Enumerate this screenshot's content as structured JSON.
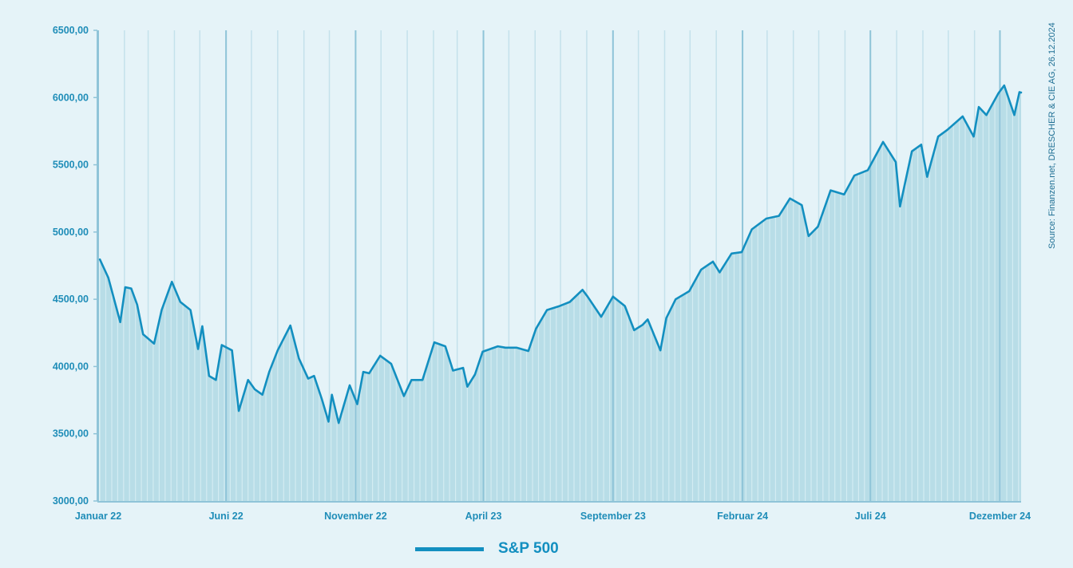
{
  "colors": {
    "line": "#138fc0",
    "fill": "#b8dde7",
    "grid_major": "#8fc4d8",
    "grid_minor": "#c4e1eb",
    "text": "#1f8db8",
    "background": "#e5f3f8"
  },
  "source": "Source: Finanzen.net, DRESCHER & CIE AG, 26.12.2024",
  "chart_data": {
    "type": "line",
    "title": "",
    "xlabel": "",
    "ylabel": "",
    "ylim": [
      3000,
      6500
    ],
    "yticks": [
      3000,
      3500,
      4000,
      4500,
      5000,
      5500,
      6000,
      6500
    ],
    "ytick_labels": [
      "3000,00",
      "3500,00",
      "4000,00",
      "4500,00",
      "5000,00",
      "5500,00",
      "6000,00",
      "6500,00"
    ],
    "xlim": [
      "2022-01-01",
      "2024-12-26"
    ],
    "xticks": [
      {
        "date": "2022-01-01",
        "label": "Januar 22"
      },
      {
        "date": "2022-06-01",
        "label": "Juni 22"
      },
      {
        "date": "2022-11-01",
        "label": "November 22"
      },
      {
        "date": "2023-04-01",
        "label": "April 23"
      },
      {
        "date": "2023-09-01",
        "label": "September 23"
      },
      {
        "date": "2024-02-01",
        "label": "Februar 24"
      },
      {
        "date": "2024-07-01",
        "label": "Juli 24"
      },
      {
        "date": "2024-12-01",
        "label": "Dezember 24"
      }
    ],
    "grid": true,
    "legend": "bottom-left",
    "series": [
      {
        "name": "S&P 500",
        "points": [
          [
            "2022-01-03",
            4796
          ],
          [
            "2022-01-13",
            4660
          ],
          [
            "2022-01-27",
            4330
          ],
          [
            "2022-02-02",
            4590
          ],
          [
            "2022-02-09",
            4580
          ],
          [
            "2022-02-16",
            4460
          ],
          [
            "2022-02-23",
            4240
          ],
          [
            "2022-03-08",
            4170
          ],
          [
            "2022-03-17",
            4420
          ],
          [
            "2022-03-29",
            4630
          ],
          [
            "2022-04-08",
            4480
          ],
          [
            "2022-04-20",
            4420
          ],
          [
            "2022-04-29",
            4130
          ],
          [
            "2022-05-04",
            4300
          ],
          [
            "2022-05-12",
            3930
          ],
          [
            "2022-05-20",
            3900
          ],
          [
            "2022-05-27",
            4160
          ],
          [
            "2022-06-08",
            4120
          ],
          [
            "2022-06-16",
            3670
          ],
          [
            "2022-06-27",
            3900
          ],
          [
            "2022-07-05",
            3830
          ],
          [
            "2022-07-14",
            3790
          ],
          [
            "2022-07-22",
            3960
          ],
          [
            "2022-08-01",
            4120
          ],
          [
            "2022-08-16",
            4305
          ],
          [
            "2022-08-26",
            4060
          ],
          [
            "2022-09-06",
            3910
          ],
          [
            "2022-09-13",
            3930
          ],
          [
            "2022-09-22",
            3760
          ],
          [
            "2022-09-30",
            3590
          ],
          [
            "2022-10-04",
            3790
          ],
          [
            "2022-10-12",
            3580
          ],
          [
            "2022-10-25",
            3860
          ],
          [
            "2022-11-03",
            3720
          ],
          [
            "2022-11-10",
            3960
          ],
          [
            "2022-11-17",
            3950
          ],
          [
            "2022-11-30",
            4080
          ],
          [
            "2022-12-13",
            4020
          ],
          [
            "2022-12-28",
            3780
          ],
          [
            "2023-01-06",
            3900
          ],
          [
            "2023-01-19",
            3900
          ],
          [
            "2023-02-02",
            4180
          ],
          [
            "2023-02-15",
            4150
          ],
          [
            "2023-02-24",
            3970
          ],
          [
            "2023-03-08",
            3990
          ],
          [
            "2023-03-13",
            3850
          ],
          [
            "2023-03-22",
            3940
          ],
          [
            "2023-03-31",
            4110
          ],
          [
            "2023-04-18",
            4150
          ],
          [
            "2023-04-27",
            4140
          ],
          [
            "2023-05-10",
            4140
          ],
          [
            "2023-05-24",
            4115
          ],
          [
            "2023-06-02",
            4280
          ],
          [
            "2023-06-15",
            4420
          ],
          [
            "2023-06-30",
            4450
          ],
          [
            "2023-07-12",
            4480
          ],
          [
            "2023-07-27",
            4570
          ],
          [
            "2023-08-02",
            4520
          ],
          [
            "2023-08-18",
            4370
          ],
          [
            "2023-09-01",
            4520
          ],
          [
            "2023-09-15",
            4450
          ],
          [
            "2023-09-26",
            4270
          ],
          [
            "2023-10-06",
            4310
          ],
          [
            "2023-10-12",
            4350
          ],
          [
            "2023-10-27",
            4120
          ],
          [
            "2023-11-03",
            4360
          ],
          [
            "2023-11-14",
            4500
          ],
          [
            "2023-11-30",
            4560
          ],
          [
            "2023-12-14",
            4720
          ],
          [
            "2023-12-28",
            4780
          ],
          [
            "2024-01-05",
            4700
          ],
          [
            "2024-01-19",
            4840
          ],
          [
            "2024-01-31",
            4850
          ],
          [
            "2024-02-12",
            5020
          ],
          [
            "2024-02-29",
            5100
          ],
          [
            "2024-03-15",
            5120
          ],
          [
            "2024-03-28",
            5250
          ],
          [
            "2024-04-11",
            5200
          ],
          [
            "2024-04-19",
            4970
          ],
          [
            "2024-04-30",
            5040
          ],
          [
            "2024-05-15",
            5310
          ],
          [
            "2024-05-31",
            5280
          ],
          [
            "2024-06-12",
            5420
          ],
          [
            "2024-06-28",
            5460
          ],
          [
            "2024-07-16",
            5670
          ],
          [
            "2024-07-31",
            5520
          ],
          [
            "2024-08-05",
            5190
          ],
          [
            "2024-08-19",
            5600
          ],
          [
            "2024-08-30",
            5650
          ],
          [
            "2024-09-06",
            5410
          ],
          [
            "2024-09-19",
            5710
          ],
          [
            "2024-09-30",
            5760
          ],
          [
            "2024-10-18",
            5860
          ],
          [
            "2024-10-31",
            5710
          ],
          [
            "2024-11-06",
            5930
          ],
          [
            "2024-11-15",
            5870
          ],
          [
            "2024-11-29",
            6030
          ],
          [
            "2024-12-06",
            6090
          ],
          [
            "2024-12-18",
            5870
          ],
          [
            "2024-12-24",
            6040
          ],
          [
            "2024-12-26",
            6037
          ]
        ]
      }
    ]
  }
}
